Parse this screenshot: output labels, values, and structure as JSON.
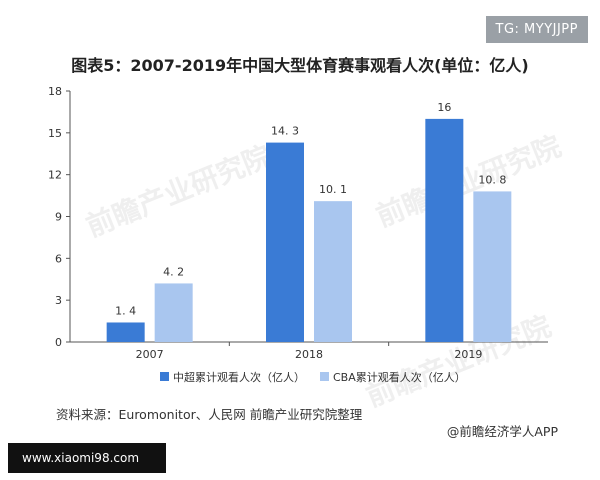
{
  "tag_label": "TG: MYYJJPP",
  "watermark_site": "www.xiaomi98.com",
  "watermark_logo_text": "前瞻产业研究院",
  "source": "资料来源：Euromonitor、人民网 前瞻产业研究院整理",
  "credit": "@前瞻经济学人APP",
  "colors": {
    "series1": "#3a7bd5",
    "series2": "#a9c6ef",
    "axis": "#555555"
  },
  "chart_data": {
    "type": "bar",
    "title": "图表5：2007-2019年中国大型体育赛事观看人次(单位：亿人)",
    "categories": [
      "2007",
      "2018",
      "2019"
    ],
    "series": [
      {
        "name": "中超累计观看人次（亿人）",
        "values": [
          1.4,
          14.3,
          16
        ],
        "labels": [
          "1. 4",
          "14. 3",
          "16"
        ]
      },
      {
        "name": "CBA累计观看人次（亿人）",
        "values": [
          4.2,
          10.1,
          10.8
        ],
        "labels": [
          "4. 2",
          "10. 1",
          "10. 8"
        ]
      }
    ],
    "ylim": [
      0,
      18
    ],
    "yticks": [
      0,
      3,
      6,
      9,
      12,
      15,
      18
    ],
    "grid": false,
    "legend": "bottom"
  }
}
